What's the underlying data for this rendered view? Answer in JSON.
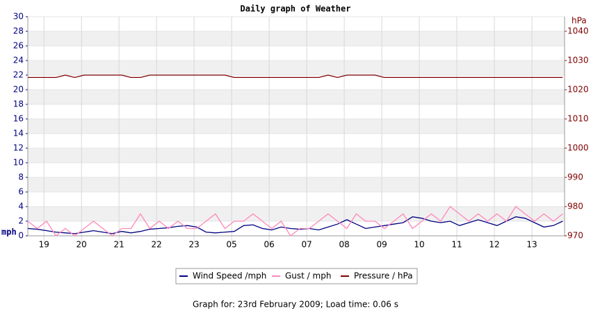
{
  "chart_data": {
    "type": "line",
    "title": "Daily graph of Weather",
    "y_label": "mph",
    "y2_label": "hPa",
    "footer": "Graph for: 23rd February 2009; Load time: 0.06 s",
    "xlim": [
      0,
      14.3
    ],
    "xticks": [
      {
        "value": 0.43,
        "label": "19"
      },
      {
        "value": 1.43,
        "label": "20"
      },
      {
        "value": 2.43,
        "label": "21"
      },
      {
        "value": 3.43,
        "label": "22"
      },
      {
        "value": 4.43,
        "label": "23"
      },
      {
        "value": 5.43,
        "label": "05"
      },
      {
        "value": 6.43,
        "label": "06"
      },
      {
        "value": 7.43,
        "label": "07"
      },
      {
        "value": 8.43,
        "label": "08"
      },
      {
        "value": 9.43,
        "label": "09"
      },
      {
        "value": 10.43,
        "label": "10"
      },
      {
        "value": 11.43,
        "label": "11"
      },
      {
        "value": 12.43,
        "label": "12"
      },
      {
        "value": 13.43,
        "label": "13"
      }
    ],
    "ylim": [
      0,
      30
    ],
    "yticks": [
      0,
      2,
      4,
      6,
      8,
      10,
      12,
      14,
      16,
      18,
      20,
      22,
      24,
      26,
      28,
      30
    ],
    "y2lim": [
      970,
      1045
    ],
    "y2ticks": [
      970,
      980,
      990,
      1000,
      1010,
      1020,
      1030,
      1040
    ],
    "grid": true,
    "x": [
      0,
      0.25,
      0.5,
      0.75,
      1,
      1.25,
      1.5,
      1.75,
      2,
      2.25,
      2.5,
      2.75,
      3,
      3.25,
      3.5,
      3.75,
      4,
      4.25,
      4.5,
      4.75,
      5,
      5.25,
      5.5,
      5.75,
      6,
      6.25,
      6.5,
      6.75,
      7,
      7.25,
      7.5,
      7.75,
      8,
      8.25,
      8.5,
      8.75,
      9,
      9.25,
      9.5,
      9.75,
      10,
      10.25,
      10.5,
      10.75,
      11,
      11.25,
      11.5,
      11.75,
      12,
      12.25,
      12.5,
      12.75,
      13,
      13.25,
      13.5,
      13.75,
      14,
      14.25
    ],
    "series": [
      {
        "name": "Wind Speed /mph",
        "color": "#000080",
        "values": [
          1.0,
          0.9,
          0.7,
          0.5,
          0.4,
          0.3,
          0.5,
          0.7,
          0.5,
          0.3,
          0.6,
          0.4,
          0.6,
          0.9,
          1.0,
          1.1,
          1.3,
          1.4,
          1.2,
          0.5,
          0.4,
          0.5,
          0.6,
          1.4,
          1.5,
          1.0,
          0.8,
          1.2,
          1.0,
          0.9,
          1.0,
          0.8,
          1.2,
          1.6,
          2.2,
          1.6,
          1.0,
          1.2,
          1.4,
          1.6,
          1.8,
          2.6,
          2.4,
          2.0,
          1.8,
          2.0,
          1.4,
          1.8,
          2.2,
          1.8,
          1.4,
          2.0,
          2.6,
          2.4,
          1.8,
          1.2,
          1.4,
          2.0
        ]
      },
      {
        "name": "Gust / mph",
        "color": "#ff88bb",
        "values": [
          2,
          1,
          2,
          0,
          1,
          0,
          1,
          2,
          1,
          0,
          1,
          1,
          3,
          1,
          2,
          1,
          2,
          1,
          1,
          2,
          3,
          1,
          2,
          2,
          3,
          2,
          1,
          2,
          0,
          1,
          1,
          2,
          3,
          2,
          1,
          3,
          2,
          2,
          1,
          2,
          3,
          1,
          2,
          3,
          2,
          4,
          3,
          2,
          3,
          2,
          3,
          2,
          4,
          3,
          2,
          3,
          2,
          3
        ]
      },
      {
        "name": "Pressure / hPa",
        "color": "#800000",
        "axis": "y2",
        "values": [
          1024.2,
          1024.2,
          1024.2,
          1024.2,
          1025,
          1024.2,
          1025,
          1025,
          1025,
          1025,
          1025,
          1024.2,
          1024.2,
          1025,
          1025,
          1025,
          1025,
          1025,
          1025,
          1025,
          1025,
          1025,
          1024.2,
          1024.2,
          1024.2,
          1024.2,
          1024.2,
          1024.2,
          1024.2,
          1024.2,
          1024.2,
          1024.2,
          1025,
          1024.2,
          1025,
          1025,
          1025,
          1025,
          1024.2,
          1024.2,
          1024.2,
          1024.2,
          1024.2,
          1024.2,
          1024.2,
          1024.2,
          1024.2,
          1024.2,
          1024.2,
          1024.2,
          1024.2,
          1024.2,
          1024.2,
          1024.2,
          1024.2,
          1024.2,
          1024.2,
          1024.2
        ]
      }
    ]
  }
}
